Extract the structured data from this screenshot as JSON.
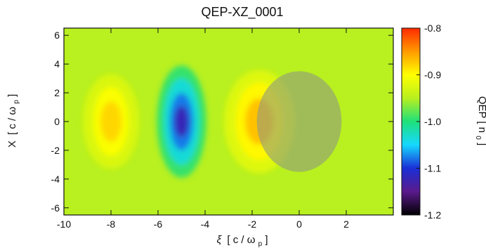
{
  "chart_data": {
    "type": "heatmap",
    "title": "QEP-XZ_0001",
    "xlabel_sym": "ξ",
    "xlabel_unit": "[ c / ω",
    "xlabel_sub": "p",
    "xlabel_close": " ]",
    "ylabel_sym": "X",
    "ylabel_unit": "[ c / ω",
    "ylabel_sub": "p",
    "ylabel_close": " ]",
    "colorbar_label": "QEP [ n",
    "colorbar_sub": "0",
    "colorbar_close": " ]",
    "xlim": [
      -10,
      4
    ],
    "ylim": [
      -6.5,
      6.5
    ],
    "clim": [
      -1.2,
      -0.8
    ],
    "xticks": [
      "-10",
      "-8",
      "-6",
      "-4",
      "-2",
      "0",
      "2"
    ],
    "xtick_values": [
      -10,
      -8,
      -6,
      -4,
      -2,
      0,
      2
    ],
    "yticks": [
      "6",
      "4",
      "2",
      "0",
      "-2",
      "-4",
      "-6"
    ],
    "ytick_values": [
      6,
      4,
      2,
      0,
      -2,
      -4,
      -6
    ],
    "cticks": [
      "-0.8",
      "-0.9",
      "-1.0",
      "-1.1",
      "-1.2"
    ],
    "ctick_values": [
      -0.8,
      -0.9,
      -1.0,
      -1.1,
      -1.2
    ],
    "background_value": -0.95,
    "features": [
      {
        "center_xi": -8.0,
        "center_x": 0.0,
        "value": -0.88,
        "kind": "maximum"
      },
      {
        "center_xi": -5.0,
        "center_x": 0.0,
        "value": -1.12,
        "kind": "minimum"
      },
      {
        "center_xi": -1.7,
        "center_x": 0.0,
        "value": -0.87,
        "kind": "maximum"
      }
    ],
    "overlay": {
      "shape": "ellipse",
      "center_xi": 0.0,
      "center_x": 0.0,
      "radius_xi": 1.8,
      "radius_x": 3.5,
      "color": "#8f9a80",
      "opacity": 0.6
    },
    "colormap": [
      "#000000",
      "#5a1a8c",
      "#1a2fd6",
      "#16d8ff",
      "#1fe07a",
      "#b8f020",
      "#ffff00",
      "#ff9a00",
      "#ff2a00"
    ]
  }
}
